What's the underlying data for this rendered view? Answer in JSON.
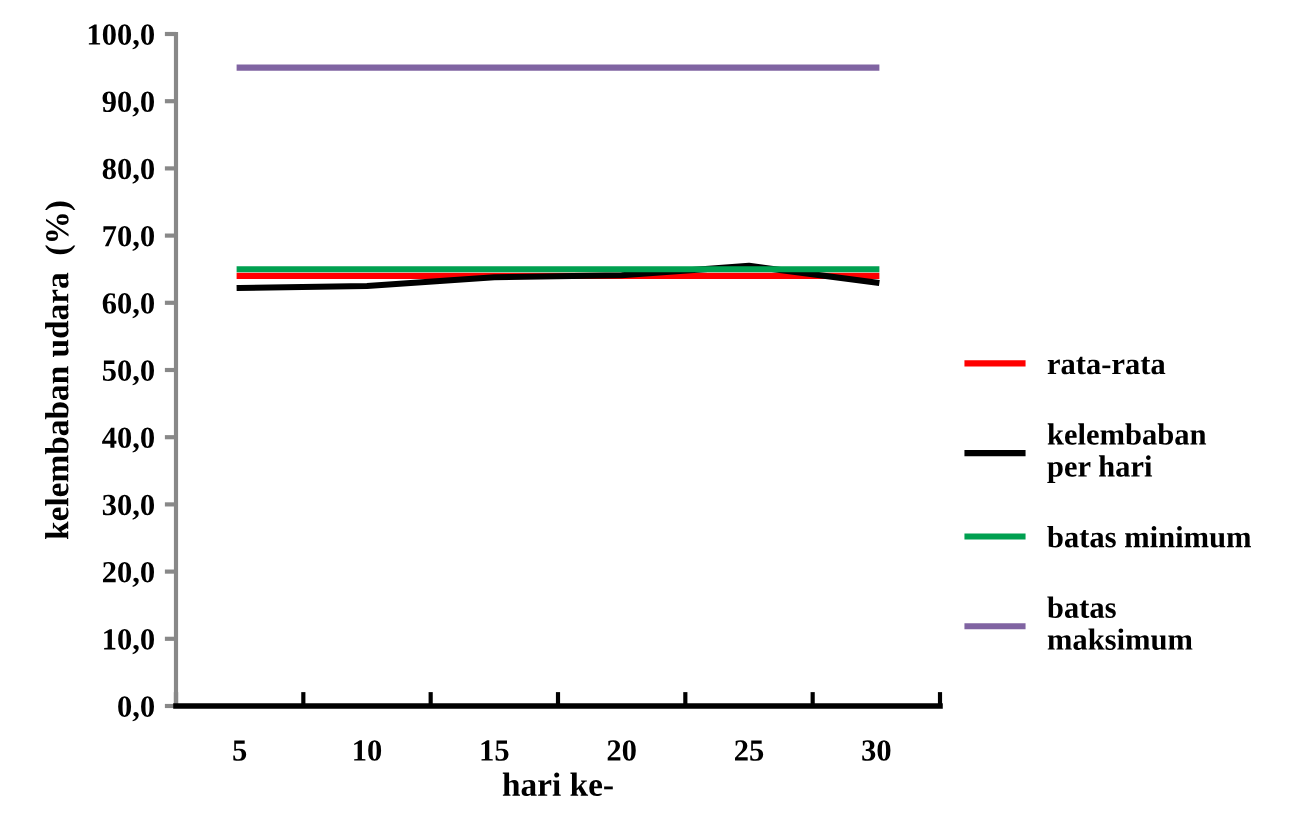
{
  "chart_data": {
    "type": "line",
    "xlabel": "hari ke-",
    "ylabel": "kelembaban udara  (%)",
    "categories": [
      "5",
      "10",
      "15",
      "20",
      "25",
      "30"
    ],
    "series": [
      {
        "name": "rata-rata",
        "color": "#ff0000",
        "values": [
          64.0,
          64.0,
          64.0,
          64.0,
          64.0,
          64.0
        ]
      },
      {
        "name": "kelembaban\nper hari",
        "color": "#000000",
        "values": [
          62.2,
          62.5,
          63.8,
          64.1,
          65.5,
          63.0
        ]
      },
      {
        "name": "batas minimum",
        "color": "#00a050",
        "values": [
          65.0,
          65.0,
          65.0,
          65.0,
          65.0,
          65.0
        ]
      },
      {
        "name": "batas\nmaksimum",
        "color": "#8064a2",
        "values": [
          95.0,
          95.0,
          95.0,
          95.0,
          95.0,
          95.0
        ]
      }
    ],
    "ylim": [
      0,
      100
    ],
    "yticks": [
      {
        "value": 0,
        "label": "0,0"
      },
      {
        "value": 10,
        "label": "10,0"
      },
      {
        "value": 20,
        "label": "20,0"
      },
      {
        "value": 30,
        "label": "30,0"
      },
      {
        "value": 40,
        "label": "40,0"
      },
      {
        "value": 50,
        "label": "50,0"
      },
      {
        "value": 60,
        "label": "60,0"
      },
      {
        "value": 70,
        "label": "70,0"
      },
      {
        "value": 80,
        "label": "80,0"
      },
      {
        "value": 90,
        "label": "90,0"
      },
      {
        "value": 100,
        "label": "100,0"
      }
    ],
    "grid": false,
    "legend": "right",
    "marker": "none",
    "line_style": "solid"
  }
}
